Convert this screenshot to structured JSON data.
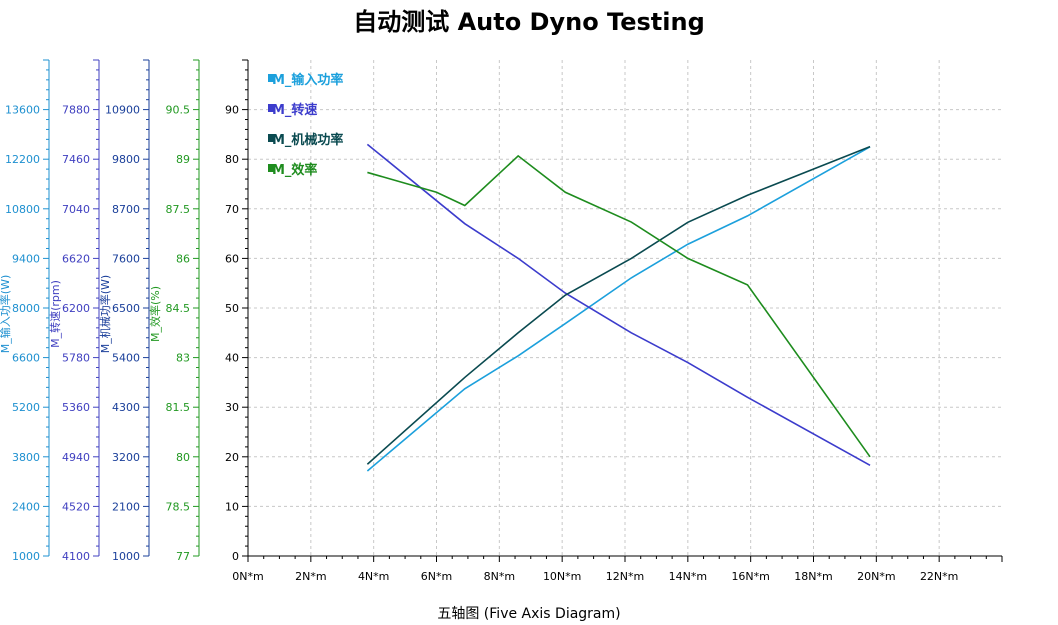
{
  "title": "自动测试 Auto Dyno Testing",
  "chart_data": {
    "type": "line",
    "title": "自动测试 Auto Dyno Testing",
    "xlabel": "五轴图 (Five Axis Diagram)",
    "x_unit": "N*m",
    "x_ticks": [
      "0N*m",
      "2N*m",
      "4N*m",
      "6N*m",
      "8N*m",
      "10N*m",
      "12N*m",
      "14N*m",
      "16N*m",
      "18N*m",
      "20N*m",
      "22N*m"
    ],
    "xlim": [
      0,
      24
    ],
    "grid": true,
    "legend_position": "top-left",
    "main_axis": {
      "range": [
        0,
        100
      ],
      "ticks": [
        "0",
        "10",
        "20",
        "30",
        "40",
        "50",
        "60",
        "70",
        "80",
        "90"
      ]
    },
    "y_axes": [
      {
        "label": "M_输入功率(W)",
        "color": "#1e90d0",
        "ticks": [
          "1000",
          "2400",
          "3800",
          "5200",
          "6600",
          "8000",
          "9400",
          "10800",
          "12200",
          "13600"
        ],
        "range": [
          1000,
          15000
        ]
      },
      {
        "label": "M_转速(rpm)",
        "color": "#4040c0",
        "ticks": [
          "4100",
          "4520",
          "4940",
          "5360",
          "5780",
          "6200",
          "6620",
          "7040",
          "7460",
          "7880"
        ],
        "range": [
          4100,
          8300
        ]
      },
      {
        "label": "M_机械功率(W)",
        "color": "#1a3f9a",
        "ticks": [
          "1000",
          "2100",
          "3200",
          "4300",
          "5400",
          "6500",
          "7600",
          "8700",
          "9800",
          "10900"
        ],
        "range": [
          1000,
          12000
        ]
      },
      {
        "label": "M_效率(%)",
        "color": "#229922",
        "ticks": [
          "77",
          "78.5",
          "80",
          "81.5",
          "83",
          "84.5",
          "86",
          "87.5",
          "89",
          "90.5"
        ],
        "range": [
          77,
          92
        ]
      }
    ],
    "series": [
      {
        "name": "M_输入功率",
        "color": "#1ca0dc",
        "x": [
          3.8,
          6.9,
          8.6,
          10.1,
          12.2,
          14.0,
          15.9,
          19.8
        ],
        "y": [
          3400,
          5720,
          6650,
          7560,
          8850,
          9800,
          10600,
          12550
        ]
      },
      {
        "name": "M_转速",
        "color": "#3c3ccc",
        "x": [
          3.8,
          6.9,
          8.6,
          10.1,
          12.2,
          14.0,
          15.9,
          19.8
        ],
        "y": [
          7586,
          6914,
          6620,
          6326,
          5990,
          5738,
          5444,
          4868
        ]
      },
      {
        "name": "M_机械功率",
        "color": "#0a4a50",
        "x": [
          3.8,
          6.9,
          8.6,
          10.1,
          12.2,
          14.0,
          15.9,
          19.8
        ],
        "y": [
          3035,
          4960,
          5950,
          6785,
          7600,
          8400,
          9000,
          10080
        ]
      },
      {
        "name": "M_效率",
        "color": "#1e8c1e",
        "x": [
          3.8,
          6.0,
          6.9,
          8.6,
          10.1,
          12.2,
          14.0,
          15.9,
          19.8
        ],
        "y": [
          88.6,
          88.0,
          87.6,
          89.1,
          88.0,
          87.1,
          86.0,
          85.2,
          80.0
        ]
      }
    ]
  }
}
